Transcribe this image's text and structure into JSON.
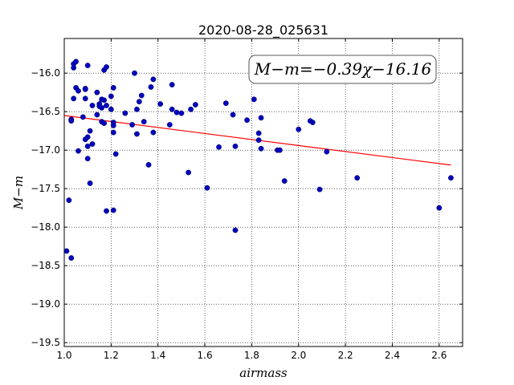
{
  "chart_data": {
    "type": "scatter",
    "title": "2020-08-28_025631",
    "xlabel": "airmass",
    "ylabel": "M−m",
    "xlim": [
      1.0,
      2.7
    ],
    "ylim": [
      -19.55,
      -15.55
    ],
    "x_ticks": [
      1.0,
      1.2,
      1.4,
      1.6,
      1.8,
      2.0,
      2.2,
      2.4,
      2.6
    ],
    "x_tick_labels": [
      "1.0",
      "1.2",
      "1.4",
      "1.6",
      "1.8",
      "2.0",
      "2.2",
      "2.4",
      "2.6"
    ],
    "y_ticks": [
      -16.0,
      -16.5,
      -17.0,
      -17.5,
      -18.0,
      -18.5,
      -19.0,
      -19.5
    ],
    "y_tick_labels": [
      "−16.0",
      "−16.5",
      "−17.0",
      "−17.5",
      "−18.0",
      "−18.5",
      "−19.0",
      "−19.5"
    ],
    "grid": true,
    "annotation": "M−m=−0.39χ−16.16",
    "fit": {
      "slope": -0.39,
      "intercept": -16.16,
      "x_range": [
        1.0,
        2.65
      ],
      "color": "#ff0000"
    },
    "point_color": "#0000bf",
    "points": [
      [
        1.04,
        -15.88
      ],
      [
        1.05,
        -15.85
      ],
      [
        1.04,
        -15.93
      ],
      [
        1.1,
        -15.9
      ],
      [
        1.18,
        -15.92
      ],
      [
        1.17,
        -15.96
      ],
      [
        1.3,
        -16.0
      ],
      [
        1.38,
        -16.08
      ],
      [
        1.46,
        -16.15
      ],
      [
        1.21,
        -16.19
      ],
      [
        1.37,
        -16.18
      ],
      [
        1.05,
        -16.19
      ],
      [
        1.06,
        -16.23
      ],
      [
        1.09,
        -16.2
      ],
      [
        1.09,
        -16.21
      ],
      [
        1.14,
        -16.25
      ],
      [
        1.04,
        -16.33
      ],
      [
        1.09,
        -16.33
      ],
      [
        1.16,
        -16.34
      ],
      [
        1.17,
        -16.35
      ],
      [
        1.2,
        -16.3
      ],
      [
        1.33,
        -16.29
      ],
      [
        1.32,
        -16.37
      ],
      [
        1.12,
        -16.42
      ],
      [
        1.15,
        -16.43
      ],
      [
        1.15,
        -16.4
      ],
      [
        1.18,
        -16.42
      ],
      [
        1.2,
        -16.47
      ],
      [
        1.41,
        -16.4
      ],
      [
        1.56,
        -16.41
      ],
      [
        1.69,
        -16.39
      ],
      [
        1.81,
        -16.34
      ],
      [
        1.16,
        -16.45
      ],
      [
        1.31,
        -16.47
      ],
      [
        1.46,
        -16.47
      ],
      [
        1.54,
        -16.47
      ],
      [
        1.48,
        -16.51
      ],
      [
        1.5,
        -16.52
      ],
      [
        1.72,
        -16.54
      ],
      [
        1.14,
        -16.54
      ],
      [
        1.26,
        -16.52
      ],
      [
        1.08,
        -16.57
      ],
      [
        1.03,
        -16.6
      ],
      [
        1.03,
        -16.62
      ],
      [
        1.16,
        -16.63
      ],
      [
        1.17,
        -16.65
      ],
      [
        1.21,
        -16.64
      ],
      [
        1.21,
        -16.68
      ],
      [
        1.29,
        -16.67
      ],
      [
        1.34,
        -16.63
      ],
      [
        1.45,
        -16.67
      ],
      [
        1.78,
        -16.61
      ],
      [
        1.84,
        -16.58
      ],
      [
        2.05,
        -16.62
      ],
      [
        2.06,
        -16.64
      ],
      [
        1.11,
        -16.75
      ],
      [
        1.21,
        -16.77
      ],
      [
        1.31,
        -16.79
      ],
      [
        1.38,
        -16.77
      ],
      [
        1.83,
        -16.78
      ],
      [
        1.1,
        -16.83
      ],
      [
        1.09,
        -16.86
      ],
      [
        1.83,
        -16.87
      ],
      [
        2.0,
        -16.73
      ],
      [
        1.1,
        -16.95
      ],
      [
        1.12,
        -16.92
      ],
      [
        1.06,
        -17.01
      ],
      [
        1.66,
        -16.96
      ],
      [
        1.73,
        -16.95
      ],
      [
        1.84,
        -16.98
      ],
      [
        1.91,
        -17.0
      ],
      [
        1.92,
        -17.0
      ],
      [
        2.12,
        -17.02
      ],
      [
        1.22,
        -17.05
      ],
      [
        1.1,
        -17.11
      ],
      [
        1.36,
        -17.19
      ],
      [
        1.53,
        -17.29
      ],
      [
        1.11,
        -17.43
      ],
      [
        1.94,
        -17.4
      ],
      [
        2.25,
        -17.36
      ],
      [
        2.65,
        -17.36
      ],
      [
        1.61,
        -17.49
      ],
      [
        2.09,
        -17.51
      ],
      [
        1.02,
        -17.65
      ],
      [
        2.6,
        -17.75
      ],
      [
        1.18,
        -17.79
      ],
      [
        1.21,
        -17.78
      ],
      [
        1.73,
        -18.04
      ],
      [
        1.01,
        -18.31
      ],
      [
        1.03,
        -18.4
      ]
    ]
  }
}
